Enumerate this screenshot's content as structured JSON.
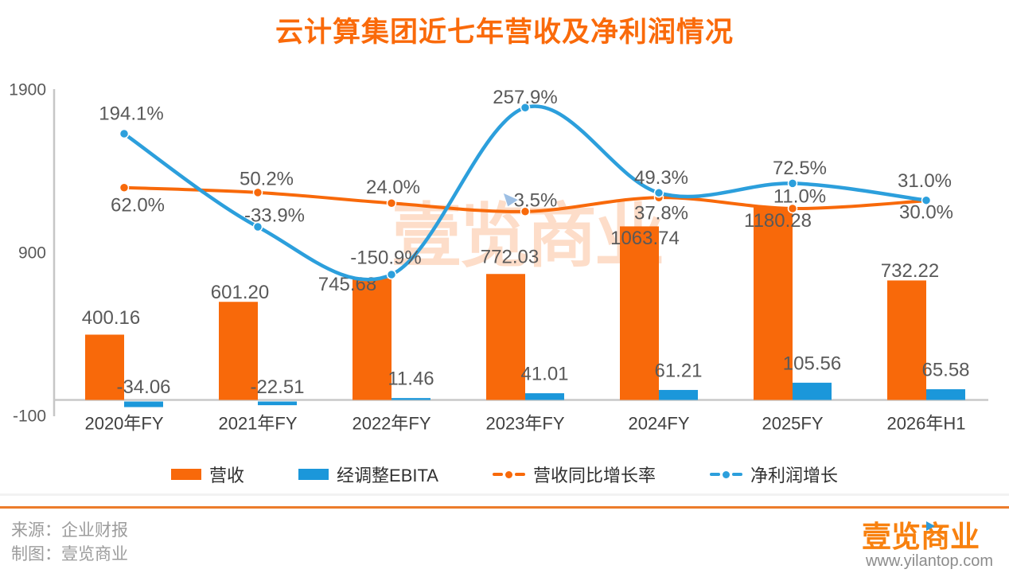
{
  "chart_data": {
    "type": "bar",
    "subtype": "bar-line-combo",
    "title": "云计算集团近七年营收及净利润情况",
    "categories": [
      "2020年FY",
      "2021年FY",
      "2022年FY",
      "2023年FY",
      "2024FY",
      "2025FY",
      "2026年H1"
    ],
    "series": [
      {
        "name": "营收",
        "type": "bar",
        "color": "#F8690A",
        "axis": "left",
        "values": [
          400.16,
          601.2,
          745.68,
          772.03,
          1063.74,
          1180.28,
          732.22
        ]
      },
      {
        "name": "经调整EBITA",
        "type": "bar",
        "color": "#1B97DA",
        "axis": "left",
        "values": [
          -34.06,
          -22.51,
          11.46,
          41.01,
          61.21,
          105.56,
          65.58
        ]
      },
      {
        "name": "营收同比增长率",
        "type": "line",
        "color": "#F8690A",
        "axis": "right",
        "unit": "%",
        "values": [
          62.0,
          50.2,
          24.0,
          3.5,
          37.8,
          11.0,
          30.0
        ]
      },
      {
        "name": "净利润增长",
        "type": "line",
        "color": "#2C9FDC",
        "axis": "right",
        "unit": "%",
        "values": [
          194.1,
          -33.9,
          -150.9,
          257.9,
          49.3,
          72.5,
          31.0
        ]
      }
    ],
    "y_axis": {
      "ticks": [
        1900,
        900,
        -100
      ],
      "min": -100,
      "max": 1900
    },
    "grid": false,
    "legend_position": "bottom"
  },
  "watermark": "壹览商业",
  "footer": {
    "source": "来源：企业财报",
    "credit": "制图：壹览商业",
    "logo": "壹览商业",
    "website": "www.yilantop.com"
  },
  "icons": {
    "cursor": "mouse-pointer-triangle",
    "brand_mark": "blue-play-triangle"
  },
  "colors": {
    "accent_orange": "#F8690A",
    "accent_blue": "#1B97DA",
    "divider_orange": "#EC7C2B",
    "label_gray": "#595959"
  }
}
